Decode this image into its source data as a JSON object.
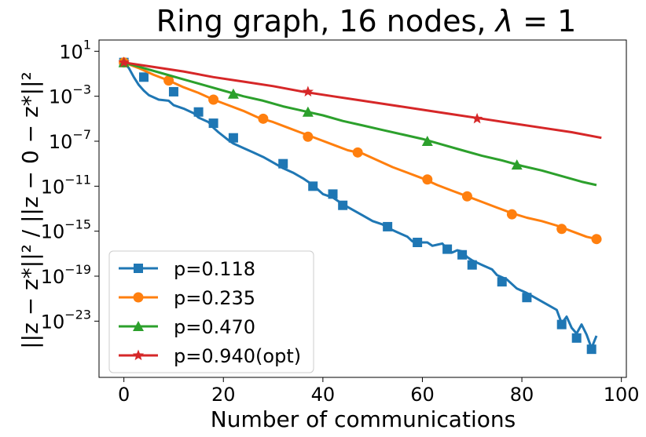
{
  "chart_data": {
    "type": "line",
    "title": "Ring graph, 16 nodes, λ = 1",
    "title_parts": {
      "main": "Ring graph, 16 nodes, ",
      "symbol": "λ",
      "rest": " = 1"
    },
    "xlabel": "Number of communications",
    "ylabel": "||z − z*||² / ||z − 0 − z*||²",
    "xlim": [
      -5,
      101
    ],
    "xticks": [
      0,
      20,
      40,
      60,
      80,
      100
    ],
    "ylog": true,
    "ylim_exp": [
      -28,
      2
    ],
    "yticks": [
      {
        "base": "10",
        "exp": "1",
        "value": 1
      },
      {
        "base": "10",
        "exp": "−3",
        "value": -3
      },
      {
        "base": "10",
        "exp": "−7",
        "value": -7
      },
      {
        "base": "10",
        "exp": "−11",
        "value": -11
      },
      {
        "base": "10",
        "exp": "−15",
        "value": -15
      },
      {
        "base": "10",
        "exp": "−19",
        "value": -19
      },
      {
        "base": "10",
        "exp": "−23",
        "value": -23
      }
    ],
    "legend_position": "lower-left",
    "series": [
      {
        "name": "p=0.118",
        "color": "#1f77b4",
        "marker": "square",
        "x": [
          0,
          1,
          2,
          3,
          4,
          5,
          7,
          9,
          10,
          12,
          14,
          15,
          17,
          18,
          19,
          21,
          22,
          24,
          26,
          28,
          30,
          32,
          34,
          36,
          38,
          39,
          40,
          42,
          43,
          44,
          46,
          48,
          50,
          52,
          53,
          55,
          57,
          58,
          59,
          60,
          61,
          62,
          63,
          64,
          65,
          66,
          67,
          68,
          69,
          70,
          72,
          74,
          75,
          77,
          79,
          81,
          83,
          85,
          87,
          88,
          89,
          90,
          91,
          92,
          93,
          94,
          95
        ],
        "y_log10": [
          0,
          -0.5,
          -1.3,
          -2.0,
          -2.5,
          -2.9,
          -3.3,
          -3.4,
          -3.8,
          -4.1,
          -4.5,
          -4.9,
          -5.3,
          -5.8,
          -6.2,
          -6.9,
          -7.2,
          -7.6,
          -8.0,
          -8.4,
          -8.9,
          -9.4,
          -9.8,
          -10.3,
          -10.9,
          -11.3,
          -11.7,
          -12.0,
          -12.3,
          -12.6,
          -13.1,
          -13.6,
          -14.1,
          -14.4,
          -14.7,
          -15.1,
          -15.5,
          -15.9,
          -16.0,
          -16.0,
          -16.0,
          -16.3,
          -16.2,
          -16.1,
          -16.6,
          -16.9,
          -16.7,
          -16.8,
          -17.3,
          -17.6,
          -18.0,
          -18.4,
          -18.9,
          -19.3,
          -20.1,
          -20.5,
          -21.0,
          -21.5,
          -22.0,
          -23.2,
          -22.6,
          -23.6,
          -24.1,
          -23.3,
          -24.2,
          -25.4,
          -24.3
        ],
        "marker_x": [
          0,
          4,
          10,
          15,
          18,
          22,
          32,
          38,
          42,
          44,
          53,
          59,
          65,
          68,
          70,
          76,
          81,
          88,
          91,
          94
        ],
        "marker_y_log10": [
          0,
          -1.3,
          -2.6,
          -4.4,
          -5.4,
          -6.7,
          -9.0,
          -11.0,
          -11.7,
          -12.7,
          -14.6,
          -16.0,
          -16.6,
          -17.1,
          -18.0,
          -19.5,
          -20.9,
          -23.3,
          -24.5,
          -25.5
        ]
      },
      {
        "name": "p=0.235",
        "color": "#ff7f0e",
        "marker": "circle",
        "x": [
          0,
          3,
          6,
          9,
          12,
          15,
          18,
          21,
          24,
          27,
          30,
          33,
          36,
          39,
          42,
          45,
          48,
          51,
          54,
          57,
          60,
          63,
          66,
          69,
          72,
          75,
          78,
          81,
          84,
          87,
          90,
          93,
          96
        ],
        "y_log10": [
          0,
          -0.5,
          -1.1,
          -1.6,
          -2.2,
          -2.7,
          -3.3,
          -3.8,
          -4.3,
          -4.9,
          -5.3,
          -5.8,
          -6.3,
          -6.8,
          -7.3,
          -7.8,
          -8.1,
          -8.7,
          -9.3,
          -9.8,
          -10.3,
          -10.9,
          -11.4,
          -11.9,
          -12.4,
          -12.9,
          -13.4,
          -13.8,
          -14.1,
          -14.5,
          -15.0,
          -15.5,
          -15.8
        ],
        "marker_x": [
          0,
          9,
          18,
          28,
          37,
          47,
          61,
          69,
          78,
          88,
          95
        ],
        "marker_y_log10": [
          0,
          -1.6,
          -3.3,
          -5.0,
          -6.6,
          -8.0,
          -10.4,
          -11.9,
          -13.5,
          -14.8,
          -15.7
        ]
      },
      {
        "name": "p=0.470",
        "color": "#2ca02c",
        "marker": "triangle",
        "x": [
          0,
          4,
          8,
          12,
          16,
          20,
          24,
          28,
          32,
          36,
          40,
          44,
          48,
          52,
          56,
          60,
          64,
          68,
          72,
          76,
          80,
          84,
          88,
          92,
          95
        ],
        "y_log10": [
          0,
          -0.5,
          -1.0,
          -1.5,
          -2.0,
          -2.5,
          -3.0,
          -3.4,
          -3.9,
          -4.3,
          -4.7,
          -5.2,
          -5.6,
          -6.0,
          -6.4,
          -6.8,
          -7.3,
          -7.8,
          -8.3,
          -8.7,
          -9.2,
          -9.6,
          -10.1,
          -10.6,
          -10.9
        ],
        "marker_x": [
          0,
          22,
          37,
          61,
          79
        ],
        "marker_y_log10": [
          0,
          -2.8,
          -4.4,
          -7.0,
          -9.1
        ]
      },
      {
        "name": "p=0.940(opt)",
        "color": "#d62728",
        "marker": "star",
        "x": [
          0,
          6,
          12,
          18,
          24,
          30,
          36,
          42,
          48,
          54,
          60,
          66,
          72,
          78,
          84,
          90,
          96
        ],
        "y_log10": [
          0,
          -0.4,
          -0.8,
          -1.3,
          -1.7,
          -2.1,
          -2.6,
          -3.0,
          -3.4,
          -3.8,
          -4.2,
          -4.6,
          -5.0,
          -5.4,
          -5.8,
          -6.2,
          -6.7
        ],
        "marker_x": [
          0,
          37,
          71
        ],
        "marker_y_log10": [
          0,
          -2.6,
          -5.0
        ]
      }
    ]
  }
}
